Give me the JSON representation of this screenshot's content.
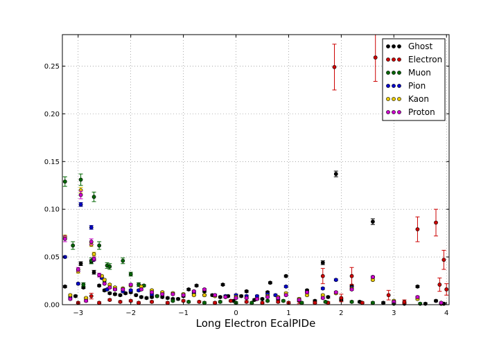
{
  "chart_data": {
    "type": "scatter",
    "title": "",
    "xlabel": "Long Electron EcalPIDe",
    "ylabel": "",
    "xlim": [
      -3.3,
      4.05
    ],
    "ylim": [
      0,
      0.283
    ],
    "grid": true,
    "grid_style": "dotted",
    "legend_position": "top-right",
    "xticks": [
      -3,
      -2,
      -1,
      0,
      1,
      2,
      3,
      4
    ],
    "xtick_labels": [
      "−3",
      "−2",
      "−1",
      "0",
      "1",
      "2",
      "3",
      "4"
    ],
    "yticks": [
      0.0,
      0.05,
      0.1,
      0.15,
      0.2,
      0.25
    ],
    "ytick_labels": [
      "0.00",
      "0.05",
      "0.10",
      "0.15",
      "0.20",
      "0.25"
    ],
    "series": [
      {
        "name": "Ghost",
        "color": "#000000",
        "points": [
          [
            -3.25,
            0.019,
            0.001
          ],
          [
            -3.05,
            0.009,
            0.001
          ],
          [
            -2.95,
            0.043,
            0.002
          ],
          [
            -2.9,
            0.018,
            0.001
          ],
          [
            -2.75,
            0.045,
            0.002
          ],
          [
            -2.7,
            0.034,
            0.002
          ],
          [
            -2.6,
            0.02,
            0.001
          ],
          [
            -2.5,
            0.015,
            0.001
          ],
          [
            -2.4,
            0.012,
            0.001
          ],
          [
            -2.3,
            0.011,
            0.001
          ],
          [
            -2.2,
            0.01,
            0.001
          ],
          [
            -2.1,
            0.012,
            0.001
          ],
          [
            -2.0,
            0.013,
            0.001
          ],
          [
            -1.9,
            0.01,
            0.001
          ],
          [
            -1.8,
            0.008,
            0.001
          ],
          [
            -1.7,
            0.007,
            0.001
          ],
          [
            -1.6,
            0.008,
            0.001
          ],
          [
            -1.5,
            0.009,
            0.001
          ],
          [
            -1.4,
            0.008,
            0.001
          ],
          [
            -1.3,
            0.007,
            0.001
          ],
          [
            -1.2,
            0.006,
            0.001
          ],
          [
            -1.1,
            0.006,
            0.001
          ],
          [
            -1.0,
            0.009,
            0.001
          ],
          [
            -0.9,
            0.016,
            0.001
          ],
          [
            -0.8,
            0.011,
            0.001
          ],
          [
            -0.75,
            0.02,
            0.001
          ],
          [
            -0.6,
            0.014,
            0.001
          ],
          [
            -0.45,
            0.01,
            0.001
          ],
          [
            -0.3,
            0.008,
            0.001
          ],
          [
            -0.25,
            0.021,
            0.001
          ],
          [
            -0.15,
            0.009,
            0.001
          ],
          [
            -0.05,
            0.004,
            0.001
          ],
          [
            0.1,
            0.009,
            0.001
          ],
          [
            0.2,
            0.014,
            0.001
          ],
          [
            0.35,
            0.005,
            0.001
          ],
          [
            0.5,
            0.006,
            0.001
          ],
          [
            0.6,
            0.013,
            0.001
          ],
          [
            0.65,
            0.023,
            0.001
          ],
          [
            0.8,
            0.006,
            0.001
          ],
          [
            0.95,
            0.03,
            0.001
          ],
          [
            1.2,
            0.004,
            0.001
          ],
          [
            1.35,
            0.015,
            0.001
          ],
          [
            1.5,
            0.004,
            0.001
          ],
          [
            1.65,
            0.044,
            0.002
          ],
          [
            1.75,
            0.008,
            0.001
          ],
          [
            1.9,
            0.137,
            0.003
          ],
          [
            2.0,
            0.005,
            0.001
          ],
          [
            2.2,
            0.02,
            0.001
          ],
          [
            2.35,
            0.003,
            0.001
          ],
          [
            2.6,
            0.087,
            0.003
          ],
          [
            2.8,
            0.002,
            0.001
          ],
          [
            3.0,
            0.002,
            0.001
          ],
          [
            3.2,
            0.001,
            0.001
          ],
          [
            3.45,
            0.019,
            0.001
          ],
          [
            3.6,
            0.001,
            0.001
          ],
          [
            3.8,
            0.004,
            0.001
          ],
          [
            3.95,
            0.001,
            0.001
          ]
        ]
      },
      {
        "name": "Electron",
        "color": "#cc0000",
        "points": [
          [
            -3.0,
            0.002,
            0.001
          ],
          [
            -2.85,
            0.005,
            0.002
          ],
          [
            -2.75,
            0.009,
            0.003
          ],
          [
            -2.6,
            0.002,
            0.001
          ],
          [
            -2.4,
            0.005,
            0.001
          ],
          [
            -2.2,
            0.003,
            0.001
          ],
          [
            -2.0,
            0.004,
            0.001
          ],
          [
            -1.85,
            0.002,
            0.001
          ],
          [
            -1.6,
            0.003,
            0.001
          ],
          [
            -1.3,
            0.002,
            0.001
          ],
          [
            -1.0,
            0.004,
            0.001
          ],
          [
            -0.7,
            0.003,
            0.001
          ],
          [
            -0.4,
            0.002,
            0.001
          ],
          [
            -0.1,
            0.004,
            0.001
          ],
          [
            0.2,
            0.003,
            0.001
          ],
          [
            0.5,
            0.002,
            0.001
          ],
          [
            0.8,
            0.003,
            0.001
          ],
          [
            1.0,
            0.002,
            0.001
          ],
          [
            1.2,
            0.004,
            0.003
          ],
          [
            1.5,
            0.002,
            0.001
          ],
          [
            1.65,
            0.03,
            0.008
          ],
          [
            1.75,
            0.002,
            0.001
          ],
          [
            1.87,
            0.249,
            0.024
          ],
          [
            2.0,
            0.007,
            0.004
          ],
          [
            2.2,
            0.03,
            0.009
          ],
          [
            2.4,
            0.002,
            0.001
          ],
          [
            2.65,
            0.259,
            0.025
          ],
          [
            2.9,
            0.01,
            0.005
          ],
          [
            3.0,
            0.002,
            0.001
          ],
          [
            3.2,
            0.003,
            0.002
          ],
          [
            3.45,
            0.079,
            0.013
          ],
          [
            3.8,
            0.086,
            0.014
          ],
          [
            3.87,
            0.021,
            0.007
          ],
          [
            3.95,
            0.047,
            0.01
          ],
          [
            4.0,
            0.016,
            0.006
          ]
        ]
      },
      {
        "name": "Muon",
        "color": "#006600",
        "points": [
          [
            -3.25,
            0.129,
            0.005
          ],
          [
            -3.1,
            0.062,
            0.004
          ],
          [
            -2.95,
            0.131,
            0.006
          ],
          [
            -2.9,
            0.021,
            0.002
          ],
          [
            -2.75,
            0.046,
            0.003
          ],
          [
            -2.7,
            0.113,
            0.005
          ],
          [
            -2.6,
            0.062,
            0.004
          ],
          [
            -2.5,
            0.025,
            0.002
          ],
          [
            -2.45,
            0.041,
            0.003
          ],
          [
            -2.4,
            0.04,
            0.003
          ],
          [
            -2.15,
            0.046,
            0.003
          ],
          [
            -2.0,
            0.032,
            0.002
          ],
          [
            -1.85,
            0.021,
            0.002
          ],
          [
            -1.75,
            0.02,
            0.001
          ],
          [
            -1.5,
            0.009,
            0.001
          ],
          [
            -1.2,
            0.004,
            0.001
          ],
          [
            -0.9,
            0.003,
            0.001
          ],
          [
            -0.6,
            0.002,
            0.001
          ],
          [
            -0.3,
            0.003,
            0.001
          ],
          [
            0.0,
            0.002,
            0.001
          ],
          [
            0.3,
            0.002,
            0.001
          ],
          [
            0.6,
            0.004,
            0.001
          ],
          [
            0.9,
            0.004,
            0.001
          ],
          [
            1.25,
            0.002,
            0.001
          ],
          [
            1.7,
            0.003,
            0.001
          ],
          [
            2.2,
            0.003,
            0.001
          ],
          [
            2.6,
            0.002,
            0.001
          ],
          [
            3.0,
            0.001,
            0.001
          ],
          [
            3.5,
            0.001,
            0.001
          ],
          [
            3.9,
            0.001,
            0.001
          ]
        ]
      },
      {
        "name": "Pion",
        "color": "#0000cc",
        "points": [
          [
            -3.25,
            0.05,
            0.001
          ],
          [
            -3.15,
            0.008,
            0.001
          ],
          [
            -3.0,
            0.022,
            0.001
          ],
          [
            -2.95,
            0.105,
            0.002
          ],
          [
            -2.75,
            0.081,
            0.002
          ],
          [
            -2.7,
            0.047,
            0.001
          ],
          [
            -2.55,
            0.028,
            0.001
          ],
          [
            -2.45,
            0.016,
            0.001
          ],
          [
            -2.3,
            0.016,
            0.001
          ],
          [
            -2.15,
            0.014,
            0.001
          ],
          [
            -2.0,
            0.015,
            0.001
          ],
          [
            -1.85,
            0.015,
            0.001
          ],
          [
            -1.6,
            0.011,
            0.001
          ],
          [
            -1.4,
            0.012,
            0.001
          ],
          [
            -1.2,
            0.012,
            0.001
          ],
          [
            -1.0,
            0.011,
            0.001
          ],
          [
            -0.8,
            0.013,
            0.001
          ],
          [
            -0.6,
            0.01,
            0.001
          ],
          [
            -0.4,
            0.01,
            0.001
          ],
          [
            -0.2,
            0.009,
            0.001
          ],
          [
            0.0,
            0.01,
            0.001
          ],
          [
            0.2,
            0.009,
            0.001
          ],
          [
            0.4,
            0.009,
            0.001
          ],
          [
            0.6,
            0.011,
            0.001
          ],
          [
            0.75,
            0.01,
            0.001
          ],
          [
            0.95,
            0.019,
            0.001
          ],
          [
            1.2,
            0.006,
            0.001
          ],
          [
            1.35,
            0.013,
            0.001
          ],
          [
            1.65,
            0.017,
            0.001
          ],
          [
            1.9,
            0.026,
            0.001
          ],
          [
            2.2,
            0.018,
            0.001
          ],
          [
            2.6,
            0.029,
            0.001
          ],
          [
            3.0,
            0.003,
            0.001
          ],
          [
            3.45,
            0.007,
            0.001
          ],
          [
            3.9,
            0.001,
            0.001
          ]
        ]
      },
      {
        "name": "Kaon",
        "color": "#e8c800",
        "points": [
          [
            -3.25,
            0.071,
            0.002
          ],
          [
            -3.15,
            0.01,
            0.001
          ],
          [
            -3.0,
            0.035,
            0.002
          ],
          [
            -2.95,
            0.12,
            0.003
          ],
          [
            -2.85,
            0.007,
            0.001
          ],
          [
            -2.75,
            0.063,
            0.002
          ],
          [
            -2.7,
            0.053,
            0.002
          ],
          [
            -2.55,
            0.03,
            0.001
          ],
          [
            -2.5,
            0.026,
            0.001
          ],
          [
            -2.4,
            0.021,
            0.001
          ],
          [
            -2.3,
            0.018,
            0.001
          ],
          [
            -2.15,
            0.017,
            0.001
          ],
          [
            -2.0,
            0.02,
            0.001
          ],
          [
            -1.8,
            0.019,
            0.001
          ],
          [
            -1.6,
            0.015,
            0.001
          ],
          [
            -1.4,
            0.013,
            0.001
          ],
          [
            -1.2,
            0.012,
            0.001
          ],
          [
            -1.0,
            0.011,
            0.001
          ],
          [
            -0.8,
            0.01,
            0.001
          ],
          [
            -0.6,
            0.01,
            0.001
          ],
          [
            -0.4,
            0.009,
            0.001
          ],
          [
            -0.2,
            0.008,
            0.001
          ],
          [
            0.0,
            0.008,
            0.001
          ],
          [
            0.2,
            0.007,
            0.001
          ],
          [
            0.4,
            0.006,
            0.001
          ],
          [
            0.6,
            0.009,
            0.001
          ],
          [
            0.8,
            0.008,
            0.001
          ],
          [
            0.95,
            0.012,
            0.001
          ],
          [
            1.2,
            0.006,
            0.001
          ],
          [
            1.35,
            0.01,
            0.001
          ],
          [
            1.65,
            0.01,
            0.001
          ],
          [
            1.9,
            0.012,
            0.001
          ],
          [
            2.2,
            0.017,
            0.001
          ],
          [
            2.6,
            0.026,
            0.001
          ],
          [
            3.0,
            0.004,
            0.001
          ],
          [
            3.45,
            0.006,
            0.001
          ],
          [
            3.9,
            0.001,
            0.001
          ]
        ]
      },
      {
        "name": "Proton",
        "color": "#cc00cc",
        "points": [
          [
            -3.25,
            0.069,
            0.003
          ],
          [
            -3.15,
            0.006,
            0.001
          ],
          [
            -3.0,
            0.037,
            0.002
          ],
          [
            -2.95,
            0.115,
            0.004
          ],
          [
            -2.85,
            0.004,
            0.001
          ],
          [
            -2.75,
            0.066,
            0.003
          ],
          [
            -2.7,
            0.048,
            0.002
          ],
          [
            -2.6,
            0.031,
            0.002
          ],
          [
            -2.5,
            0.022,
            0.001
          ],
          [
            -2.4,
            0.018,
            0.001
          ],
          [
            -2.3,
            0.016,
            0.001
          ],
          [
            -2.15,
            0.016,
            0.001
          ],
          [
            -2.0,
            0.021,
            0.001
          ],
          [
            -1.8,
            0.016,
            0.001
          ],
          [
            -1.6,
            0.013,
            0.001
          ],
          [
            -1.4,
            0.011,
            0.001
          ],
          [
            -1.2,
            0.011,
            0.001
          ],
          [
            -1.0,
            0.01,
            0.001
          ],
          [
            -0.8,
            0.014,
            0.001
          ],
          [
            -0.6,
            0.016,
            0.001
          ],
          [
            -0.4,
            0.01,
            0.001
          ],
          [
            -0.2,
            0.008,
            0.001
          ],
          [
            0.0,
            0.007,
            0.001
          ],
          [
            0.2,
            0.007,
            0.001
          ],
          [
            0.4,
            0.006,
            0.001
          ],
          [
            0.6,
            0.008,
            0.001
          ],
          [
            0.8,
            0.007,
            0.001
          ],
          [
            0.95,
            0.01,
            0.001
          ],
          [
            1.2,
            0.005,
            0.001
          ],
          [
            1.35,
            0.013,
            0.001
          ],
          [
            1.65,
            0.007,
            0.001
          ],
          [
            1.9,
            0.013,
            0.001
          ],
          [
            2.2,
            0.016,
            0.001
          ],
          [
            2.6,
            0.029,
            0.001
          ],
          [
            3.0,
            0.003,
            0.001
          ],
          [
            3.45,
            0.008,
            0.001
          ],
          [
            3.9,
            0.002,
            0.001
          ]
        ]
      }
    ]
  }
}
